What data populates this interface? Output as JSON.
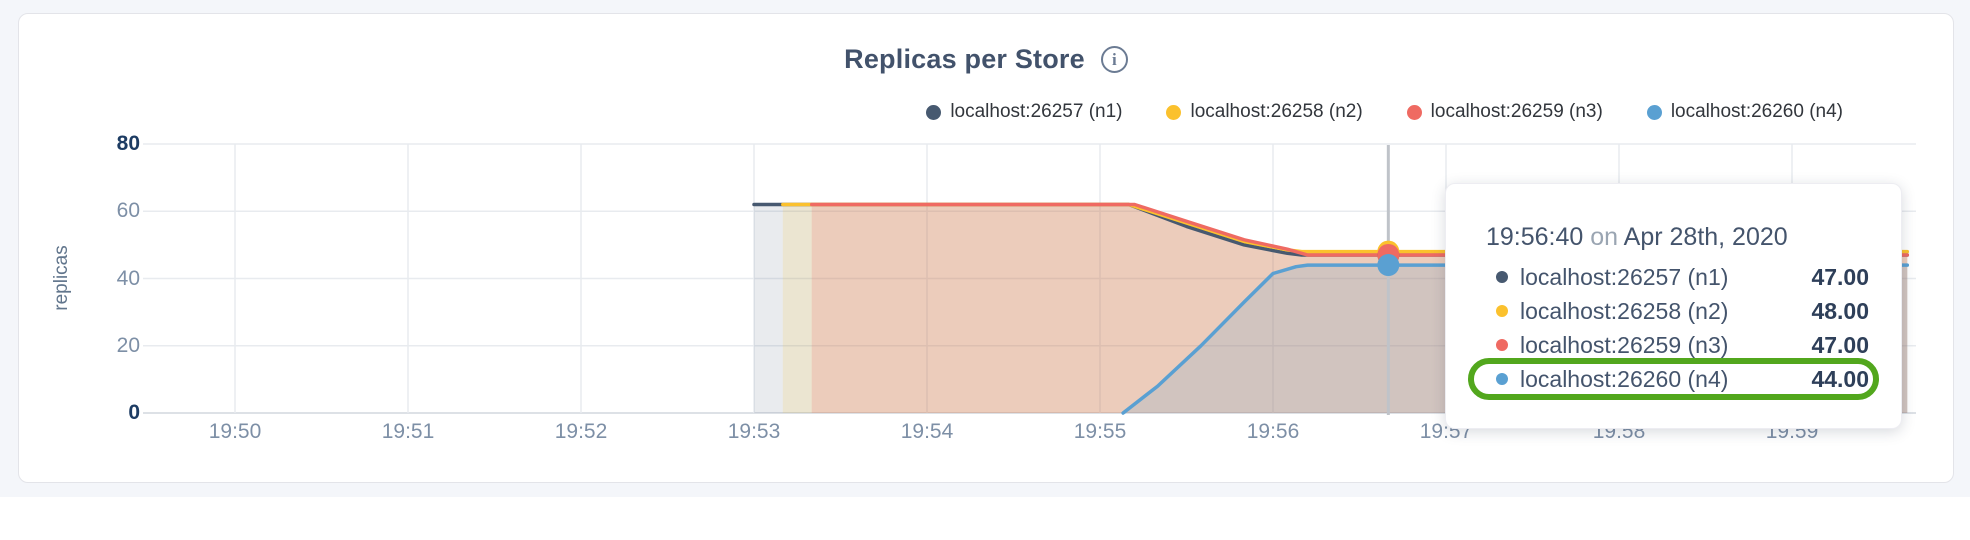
{
  "header": {
    "title": "Replicas per Store",
    "info_icon": "i"
  },
  "legend": {
    "items": [
      {
        "label": "localhost:26257 (n1)",
        "color": "#475970"
      },
      {
        "label": "localhost:26258 (n2)",
        "color": "#fbc12d"
      },
      {
        "label": "localhost:26259 (n3)",
        "color": "#ef6a62"
      },
      {
        "label": "localhost:26260 (n4)",
        "color": "#5aa0d2"
      }
    ]
  },
  "axes": {
    "y_label": "replicas",
    "y_ticks": [
      "80",
      "60",
      "40",
      "20",
      "0"
    ],
    "x_ticks": [
      "19:50",
      "19:51",
      "19:52",
      "19:53",
      "19:54",
      "19:55",
      "19:56",
      "19:57",
      "19:58",
      "19:59"
    ]
  },
  "chart_data": {
    "type": "area",
    "title": "Replicas per Store",
    "xlabel": "",
    "ylabel": "replicas",
    "ylim": [
      0,
      80
    ],
    "y_ticks": [
      0,
      20,
      40,
      60,
      80
    ],
    "x_ticks": [
      "19:50",
      "19:51",
      "19:52",
      "19:53",
      "19:54",
      "19:55",
      "19:56",
      "19:57",
      "19:58",
      "19:59"
    ],
    "grid": true,
    "legend_position": "top-right",
    "series": [
      {
        "name": "localhost:26257 (n1)",
        "color": "#475970",
        "fill_opacity": 0.12,
        "points": [
          [
            "19:53:00",
            62
          ],
          [
            "19:55:10",
            62
          ],
          [
            "19:55:30",
            55.5
          ],
          [
            "19:55:50",
            50
          ],
          [
            "19:56:05",
            47.5
          ],
          [
            "19:56:10",
            47
          ],
          [
            "19:59:40",
            47
          ]
        ]
      },
      {
        "name": "localhost:26258 (n2)",
        "color": "#fbc12d",
        "fill_opacity": 0.15,
        "points": [
          [
            "19:53:10",
            62
          ],
          [
            "19:55:10",
            62
          ],
          [
            "19:55:30",
            56.5
          ],
          [
            "19:55:50",
            51
          ],
          [
            "19:56:05",
            48.5
          ],
          [
            "19:56:10",
            48
          ],
          [
            "19:59:40",
            48
          ]
        ]
      },
      {
        "name": "localhost:26259 (n3)",
        "color": "#ef6a62",
        "fill_opacity": 0.2,
        "points": [
          [
            "19:53:20",
            62
          ],
          [
            "19:55:12",
            62
          ],
          [
            "19:55:30",
            57
          ],
          [
            "19:55:50",
            51.5
          ],
          [
            "19:56:05",
            48.7
          ],
          [
            "19:56:12",
            47
          ],
          [
            "19:59:40",
            47
          ]
        ]
      },
      {
        "name": "localhost:26260 (n4)",
        "color": "#5aa0d2",
        "fill_opacity": 0.18,
        "points": [
          [
            "19:55:08",
            0
          ],
          [
            "19:55:20",
            8
          ],
          [
            "19:55:35",
            20
          ],
          [
            "19:55:50",
            33
          ],
          [
            "19:56:00",
            41.5
          ],
          [
            "19:56:08",
            43.5
          ],
          [
            "19:56:12",
            44
          ],
          [
            "19:59:40",
            44
          ]
        ]
      }
    ],
    "hover": {
      "time": "19:56:40",
      "values": [
        47,
        48,
        47,
        44
      ]
    }
  },
  "tooltip": {
    "time": "19:56:40",
    "connector": " on ",
    "date": "Apr 28th, 2020",
    "rows": [
      {
        "label": "localhost:26257 (n1)",
        "value": "47.00",
        "color": "#475970",
        "highlighted": false
      },
      {
        "label": "localhost:26258 (n2)",
        "value": "48.00",
        "color": "#fbc12d",
        "highlighted": false
      },
      {
        "label": "localhost:26259 (n3)",
        "value": "47.00",
        "color": "#ef6a62",
        "highlighted": false
      },
      {
        "label": "localhost:26260 (n4)",
        "value": "44.00",
        "color": "#5aa0d2",
        "highlighted": true
      }
    ],
    "highlight_color": "#52a71d"
  },
  "colors": {
    "page_background": "#f4f6fa",
    "card_background": "#ffffff",
    "grid": "#e8ebef",
    "baseline": "#dde1e6",
    "crosshair": "#bfc3c9",
    "axis_text": "#7d8fa6",
    "axis_text_strong": "#1d3c63",
    "title_text": "#42526b"
  }
}
